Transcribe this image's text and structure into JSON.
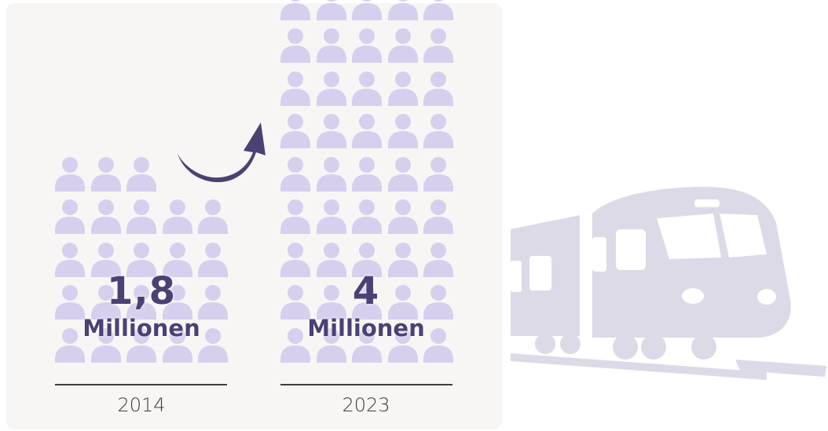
{
  "chart_data": {
    "type": "bar",
    "categories": [
      "2014",
      "2023"
    ],
    "series": [
      {
        "values": [
          1.8,
          4
        ]
      }
    ],
    "value_labels": [
      {
        "number": "1,8",
        "unit": "Millionen"
      },
      {
        "number": "4",
        "unit": "Millionen"
      }
    ]
  },
  "colors": {
    "person_icon": "#d6d0ee",
    "text_accent": "#4b4173",
    "arrow": "#4b4173",
    "panel_background": "#f7f6f5",
    "train": "#dcdae6",
    "axis_text": "#3d3d3d"
  },
  "icons": {
    "unit": "person-icon",
    "trend": "curved-arrow-icon",
    "decoration": "train-icon"
  }
}
